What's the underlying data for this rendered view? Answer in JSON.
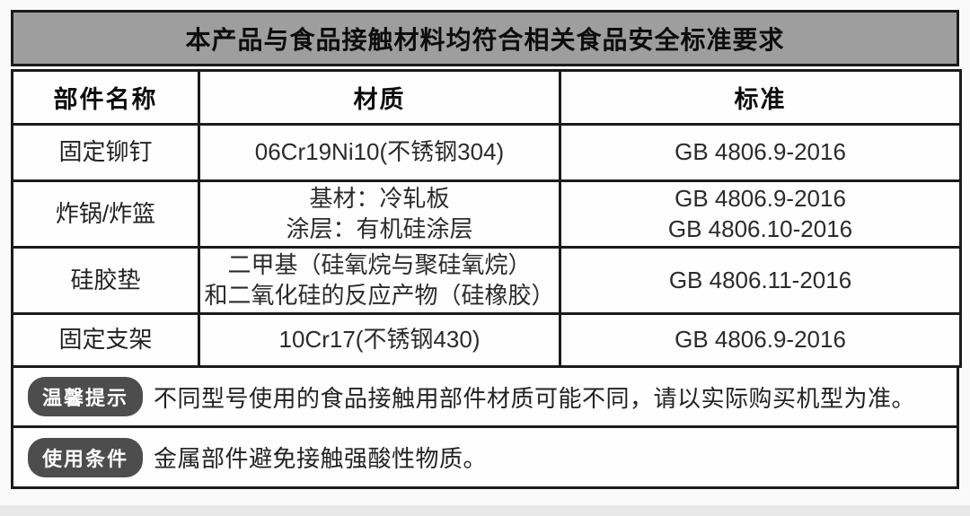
{
  "title": "本产品与食品接触材料均符合相关食品安全标准要求",
  "table": {
    "headers": [
      "部件名称",
      "材质",
      "标准"
    ],
    "rows": [
      {
        "part": "固定铆钉",
        "material": [
          "06Cr19Ni10(不锈钢304)"
        ],
        "standard": [
          "GB 4806.9-2016"
        ]
      },
      {
        "part": "炸锅/炸篮",
        "material": [
          "基材：冷轧板",
          "涂层：有机硅涂层"
        ],
        "standard": [
          "GB 4806.9-2016",
          "GB 4806.10-2016"
        ]
      },
      {
        "part": "硅胶垫",
        "material": [
          "二甲基（硅氧烷与聚硅氧烷）",
          "和二氧化硅的反应产物（硅橡胶）"
        ],
        "standard": [
          "GB 4806.11-2016"
        ]
      },
      {
        "part": "固定支架",
        "material": [
          "10Cr17(不锈钢430)"
        ],
        "standard": [
          "GB 4806.9-2016"
        ]
      }
    ]
  },
  "notes": [
    {
      "badge": "温馨提示",
      "text": "不同型号使用的食品接触用部件材质可能不同，请以实际购买机型为准。"
    },
    {
      "badge": "使用条件",
      "text": "金属部件避免接触强酸性物质。"
    }
  ],
  "colors": {
    "title_bar_bg": "#9e9e9e",
    "border": "#1b1b1b",
    "badge_bg": "#4d4d4d",
    "badge_text": "#ffffff",
    "text": "#2b2b2b",
    "page_bg": "#fafafa",
    "bottom_strip": "#e7e7e7"
  }
}
